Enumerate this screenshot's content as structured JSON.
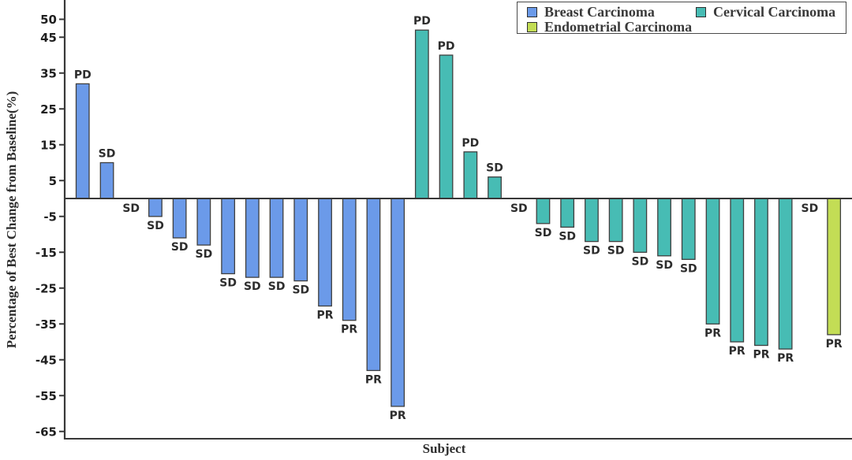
{
  "chart_data": {
    "type": "bar",
    "subtype": "waterfall",
    "xlabel": "Subject",
    "ylabel": "Percentage of Best Change from Baseline(%)",
    "ylim": [
      -66,
      52
    ],
    "yticks": [
      50,
      45,
      35,
      25,
      15,
      5,
      -5,
      -15,
      -25,
      -35,
      -45,
      -55,
      -65
    ],
    "grid": false,
    "legend_position": "top-right",
    "legend_rows": [
      [
        "Breast Carcinoma",
        "Cervical Carcinoma"
      ],
      [
        "Endometrial Carcinoma"
      ]
    ],
    "groups": [
      {
        "name": "Breast Carcinoma",
        "color": "#6b9ae9"
      },
      {
        "name": "Cervical Carcinoma",
        "color": "#47bcb4"
      },
      {
        "name": "Endometrial Carcinoma",
        "color": "#c3dd55"
      }
    ],
    "series": [
      {
        "name": "Breast Carcinoma",
        "values": [
          32,
          10,
          0,
          -5,
          -11,
          -13,
          -21,
          -22,
          -22,
          -23,
          -30,
          -34,
          -48,
          -58
        ],
        "labels": [
          "PD",
          "SD",
          "SD",
          "SD",
          "SD",
          "SD",
          "SD",
          "SD",
          "SD",
          "SD",
          "PR",
          "PR",
          "PR",
          "PR"
        ]
      },
      {
        "name": "Cervical Carcinoma",
        "values": [
          47,
          40,
          13,
          6,
          0,
          -7,
          -8,
          -12,
          -12,
          -15,
          -16,
          -17,
          -35,
          -40,
          -41,
          -42
        ],
        "labels": [
          "PD",
          "PD",
          "PD",
          "SD",
          "SD",
          "SD",
          "SD",
          "SD",
          "SD",
          "SD",
          "SD",
          "SD",
          "PR",
          "PR",
          "PR",
          "PR"
        ]
      },
      {
        "name": "Endometrial Carcinoma",
        "values": [
          0,
          -38
        ],
        "labels": [
          "SD",
          "PR"
        ]
      }
    ],
    "response_label_meaning": {
      "PD": "PD",
      "SD": "SD",
      "PR": "PR"
    },
    "axis_color": "#383838",
    "tick_label_color": "#1f1f1f",
    "bar_label_color": "#2d2d2d",
    "bar_edge_color": "#3f3f3f"
  }
}
